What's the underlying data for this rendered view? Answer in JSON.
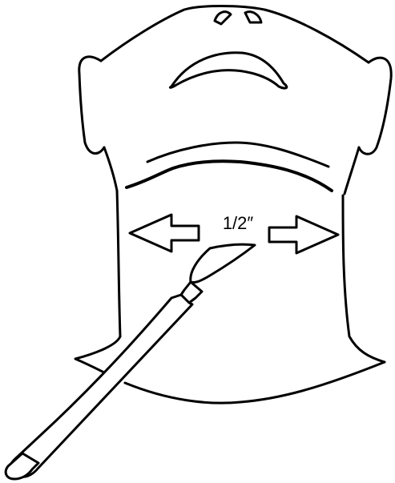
{
  "diagram": {
    "measurement_label": "1/2″"
  },
  "colors": {
    "line": "#000000",
    "background": "#ffffff"
  }
}
